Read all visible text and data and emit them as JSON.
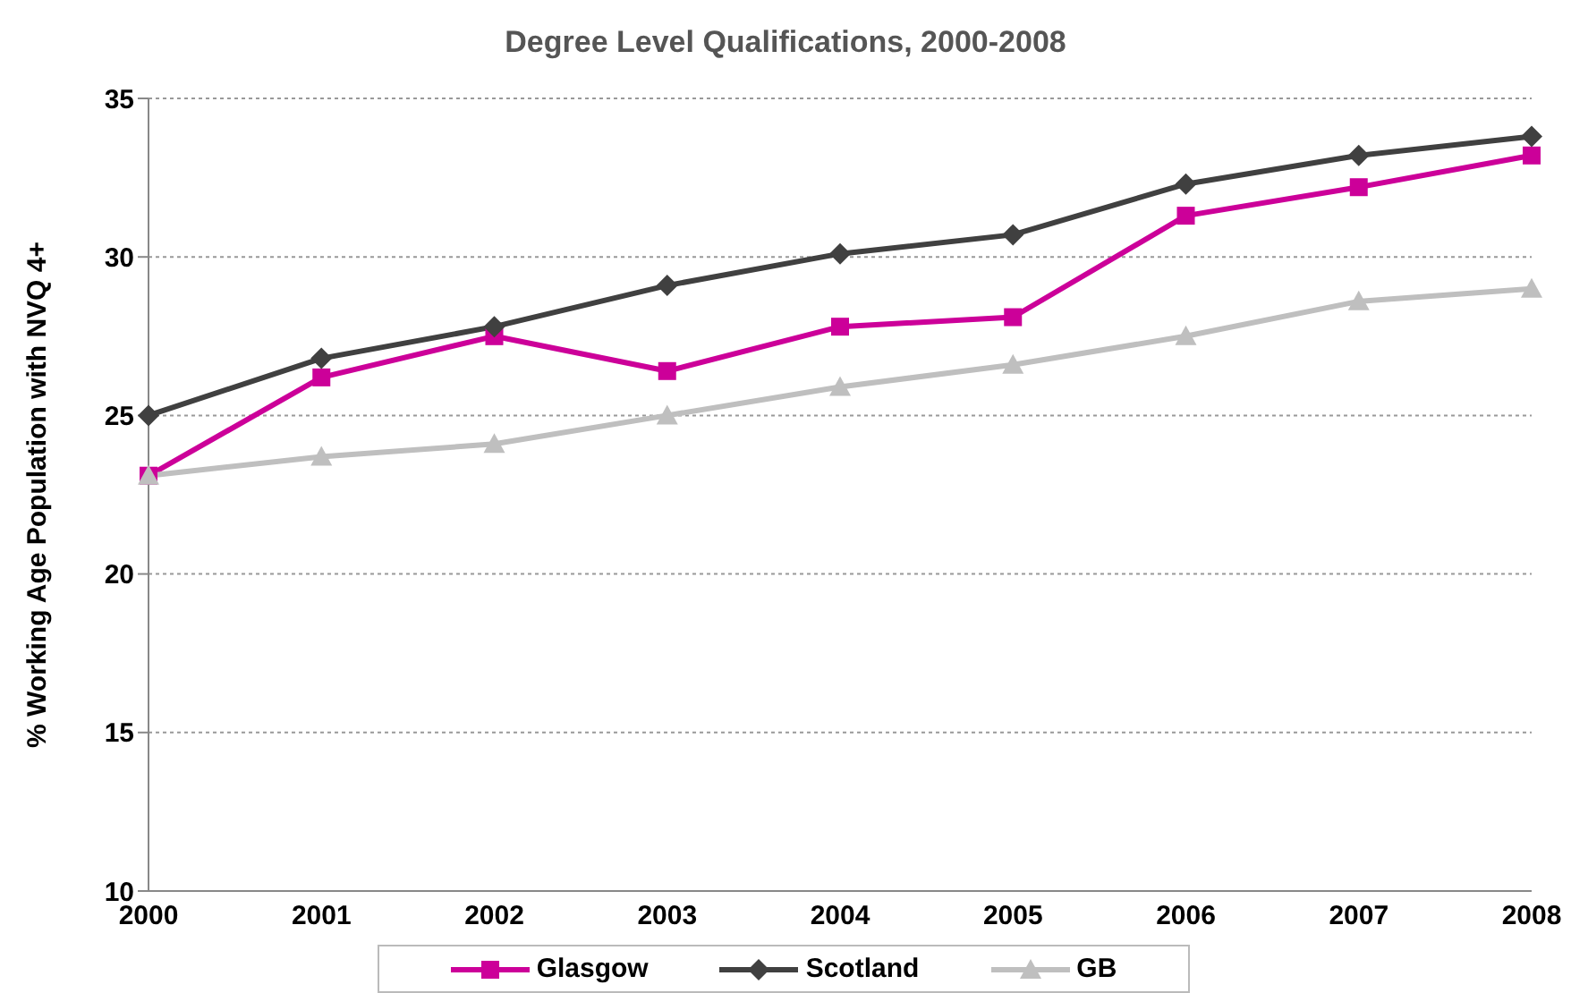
{
  "chart_data": {
    "type": "line",
    "title": "Degree Level Qualifications, 2000-2008",
    "ylabel": "% Working Age Population with NVQ 4+",
    "categories": [
      "2000",
      "2001",
      "2002",
      "2003",
      "2004",
      "2005",
      "2006",
      "2007",
      "2008"
    ],
    "series": [
      {
        "name": "Glasgow",
        "color": "#cc0099",
        "marker": "square",
        "values": [
          23.1,
          26.2,
          27.5,
          26.4,
          27.8,
          28.1,
          31.3,
          32.2,
          33.2
        ]
      },
      {
        "name": "Scotland",
        "color": "#404040",
        "marker": "diamond",
        "values": [
          25.0,
          26.8,
          27.8,
          29.1,
          30.1,
          30.7,
          32.3,
          33.2,
          33.8
        ]
      },
      {
        "name": "GB",
        "color": "#bfbfbf",
        "marker": "triangle",
        "values": [
          23.1,
          23.7,
          24.1,
          25.0,
          25.9,
          26.6,
          27.5,
          28.6,
          29.0
        ]
      }
    ],
    "ylim": [
      10,
      35
    ],
    "yticks": [
      10,
      15,
      20,
      25,
      30,
      35
    ],
    "grid": "y",
    "legend": "bottom",
    "line_style": "solid"
  }
}
